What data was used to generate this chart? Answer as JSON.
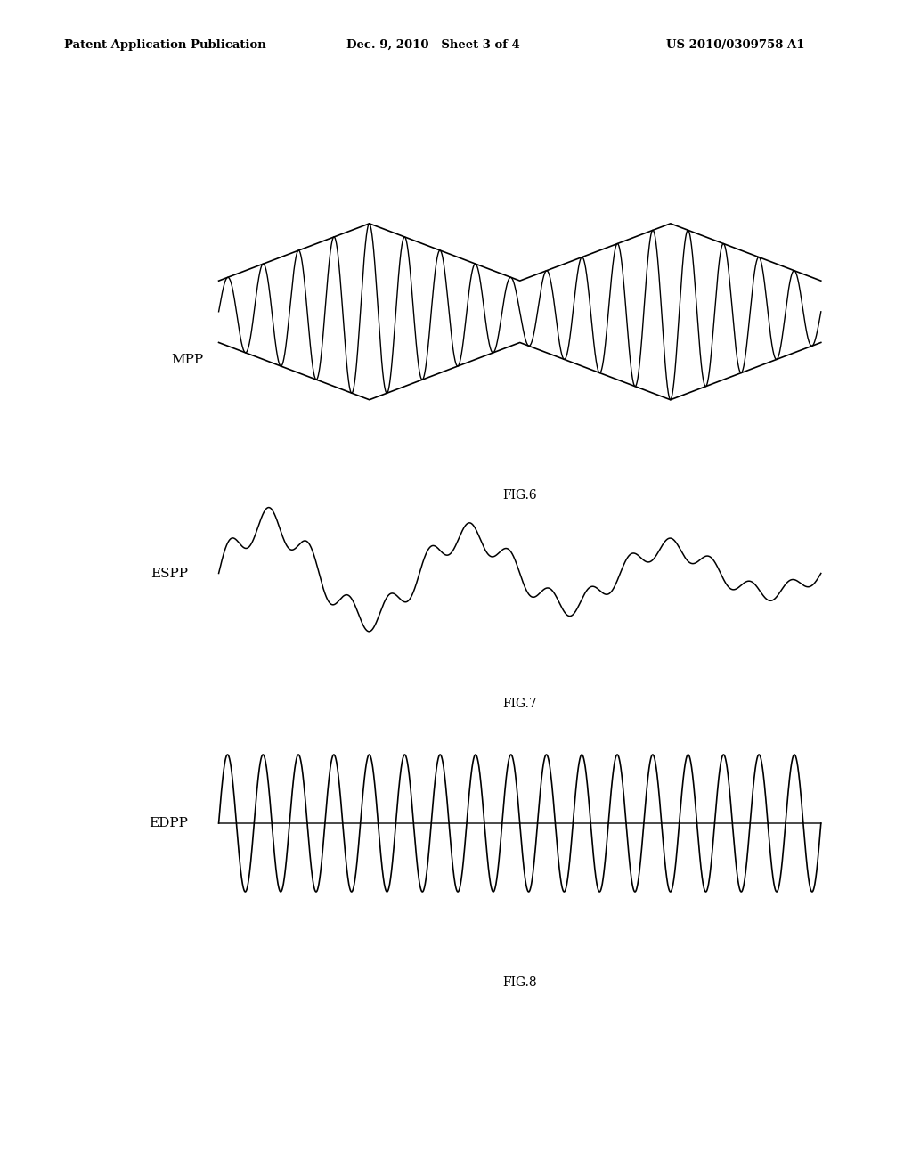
{
  "background_color": "#ffffff",
  "header_left": "Patent Application Publication",
  "header_mid": "Dec. 9, 2010   Sheet 3 of 4",
  "header_right": "US 2010/0309758 A1",
  "header_fontsize": 9.5,
  "fig6_label": "FIG.6",
  "fig7_label": "FIG.7",
  "fig8_label": "FIG.8",
  "mpp_label": "MPP",
  "espp_label": "ESPP",
  "edpp_label": "EDPP",
  "waveform_color": "#000000",
  "label_fontsize": 11,
  "fig_label_fontsize": 10
}
